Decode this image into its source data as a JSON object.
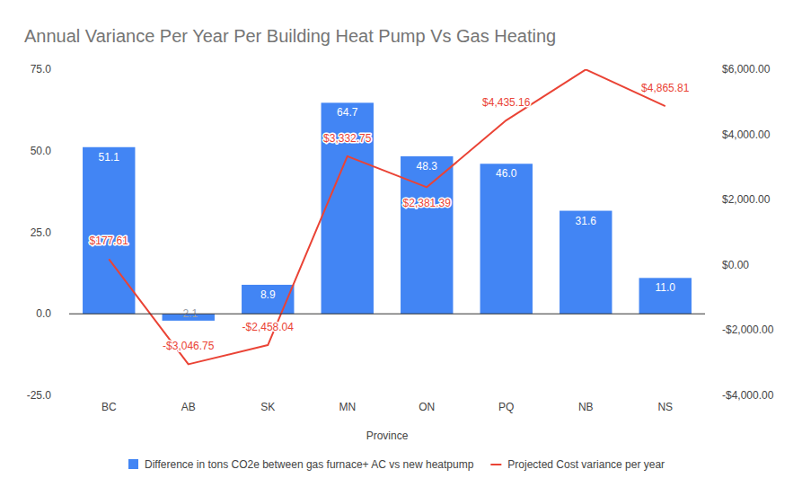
{
  "chart_data": {
    "type": "bar",
    "title": "Annual Variance Per Year Per Building Heat Pump Vs Gas Heating",
    "x_label": "Province",
    "categories": [
      "BC",
      "AB",
      "SK",
      "MN",
      "ON",
      "PQ",
      "NB",
      "NS"
    ],
    "series": [
      {
        "name": "Difference in tons CO2e between gas furnace+ AC vs new heatpump",
        "type": "bar",
        "color": "#4285f4",
        "values": [
          51.1,
          -2.1,
          8.9,
          64.7,
          48.3,
          46.0,
          31.6,
          11.0
        ],
        "value_labels": [
          "51.1",
          "-2.1",
          "8.9",
          "64.7",
          "48.3",
          "46.0",
          "31.6",
          "11.0"
        ]
      },
      {
        "name": "Projected Cost variance per year",
        "type": "line",
        "axis": "y2",
        "color": "#ea4335",
        "values": [
          177.61,
          -3046.75,
          -2458.04,
          3332.75,
          2381.39,
          4435.16,
          5990,
          4865.81
        ],
        "value_labels": [
          "$177.61",
          "-$3,046.75",
          "-$2,458.04",
          "$3,332.75",
          "$2,381.39",
          "$4,435.16",
          null,
          "$4,865.81"
        ]
      }
    ],
    "ylim": [
      -25,
      75
    ],
    "yticks": [
      {
        "value": -25,
        "label": "-25.0"
      },
      {
        "value": 0,
        "label": "0.0"
      },
      {
        "value": 25,
        "label": "25.0"
      },
      {
        "value": 50,
        "label": "50.0"
      },
      {
        "value": 75,
        "label": "75.0"
      }
    ],
    "y2lim": [
      -4000,
      6000
    ],
    "y2ticks": [
      {
        "value": -4000,
        "label": "-$4,000.00"
      },
      {
        "value": -2000,
        "label": "-$2,000.00"
      },
      {
        "value": 0,
        "label": "$0.00"
      },
      {
        "value": 2000,
        "label": "$2,000.00"
      },
      {
        "value": 4000,
        "label": "$4,000.00"
      },
      {
        "value": 6000,
        "label": "$6,000.00"
      }
    ],
    "data_labels": true,
    "grid": false,
    "legend": "bottom"
  }
}
